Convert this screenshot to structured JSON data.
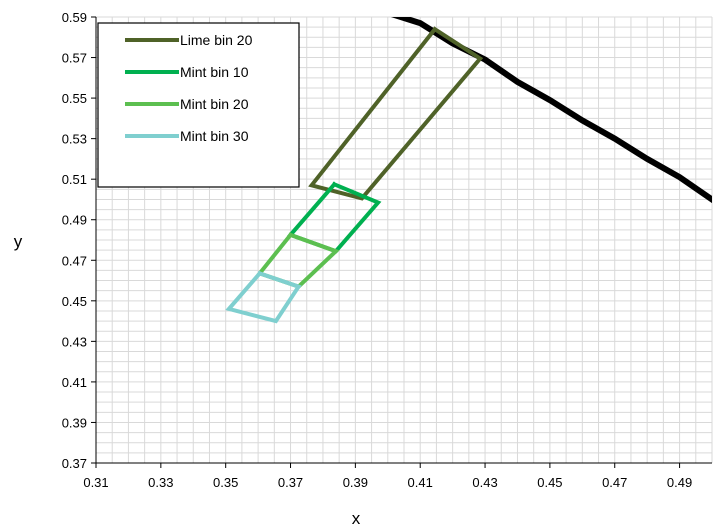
{
  "chart_data": {
    "type": "line",
    "xlabel": "x",
    "ylabel": "y",
    "xlim": [
      0.31,
      0.5
    ],
    "ylim": [
      0.37,
      0.59
    ],
    "x_ticks": [
      "0.31",
      "0.33",
      "0.35",
      "0.37",
      "0.39",
      "0.41",
      "0.43",
      "0.45",
      "0.47",
      "0.49"
    ],
    "y_ticks": [
      "0.59",
      "0.57",
      "0.55",
      "0.53",
      "0.51",
      "0.49",
      "0.47",
      "0.45",
      "0.43",
      "0.41",
      "0.39",
      "0.37"
    ],
    "grid": true,
    "legend_position": "top-left",
    "series": [
      {
        "name": "",
        "color": "#000000",
        "points": [
          [
            0.4,
            0.592
          ],
          [
            0.41,
            0.587
          ],
          [
            0.42,
            0.577
          ],
          [
            0.43,
            0.569
          ],
          [
            0.44,
            0.558
          ],
          [
            0.45,
            0.549
          ],
          [
            0.46,
            0.539
          ],
          [
            0.47,
            0.53
          ],
          [
            0.48,
            0.52
          ],
          [
            0.49,
            0.511
          ],
          [
            0.5,
            0.5
          ]
        ]
      },
      {
        "name": "Lime bin 20",
        "color": "#4f6228",
        "points": [
          [
            0.4145,
            0.584
          ],
          [
            0.3765,
            0.507
          ],
          [
            0.392,
            0.5005
          ],
          [
            0.4285,
            0.5695
          ],
          [
            0.4145,
            0.584
          ]
        ]
      },
      {
        "name": "Mint bin 10",
        "color": "#00b050",
        "points": [
          [
            0.3835,
            0.5075
          ],
          [
            0.397,
            0.4985
          ],
          [
            0.384,
            0.4745
          ],
          [
            0.37,
            0.4825
          ],
          [
            0.3835,
            0.5075
          ]
        ]
      },
      {
        "name": "Mint bin 20",
        "color": "#5cbf50",
        "points": [
          [
            0.37,
            0.4825
          ],
          [
            0.384,
            0.4745
          ],
          [
            0.3725,
            0.457
          ],
          [
            0.3605,
            0.4635
          ],
          [
            0.37,
            0.4825
          ]
        ]
      },
      {
        "name": "Mint bin 30",
        "color": "#7fcfcf",
        "points": [
          [
            0.3605,
            0.4635
          ],
          [
            0.3725,
            0.457
          ],
          [
            0.3655,
            0.44
          ],
          [
            0.351,
            0.446
          ],
          [
            0.3605,
            0.4635
          ]
        ]
      }
    ]
  }
}
